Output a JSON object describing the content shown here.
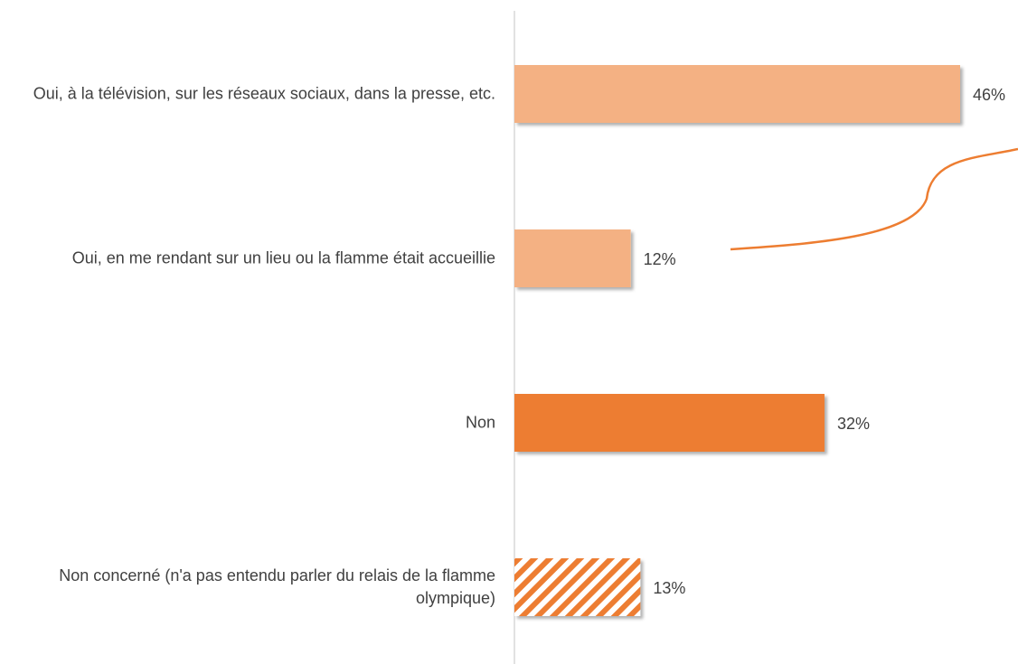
{
  "chart_data": {
    "type": "bar",
    "orientation": "horizontal",
    "categories": [
      "Oui, à la télévision, sur les réseaux sociaux, dans la presse, etc.",
      "Oui, en me rendant sur un lieu ou la flamme était accueillie",
      "Non",
      "Non concerné (n'a pas entendu parler du relais de la flamme olympique)"
    ],
    "values": [
      46,
      12,
      32,
      13
    ],
    "value_labels": [
      "46%",
      "12%",
      "32%",
      "13%"
    ],
    "colors": [
      "#f4b183",
      "#f4b183",
      "#ed7d31",
      "#ed7d31"
    ],
    "hatched": [
      false,
      false,
      false,
      true
    ]
  }
}
